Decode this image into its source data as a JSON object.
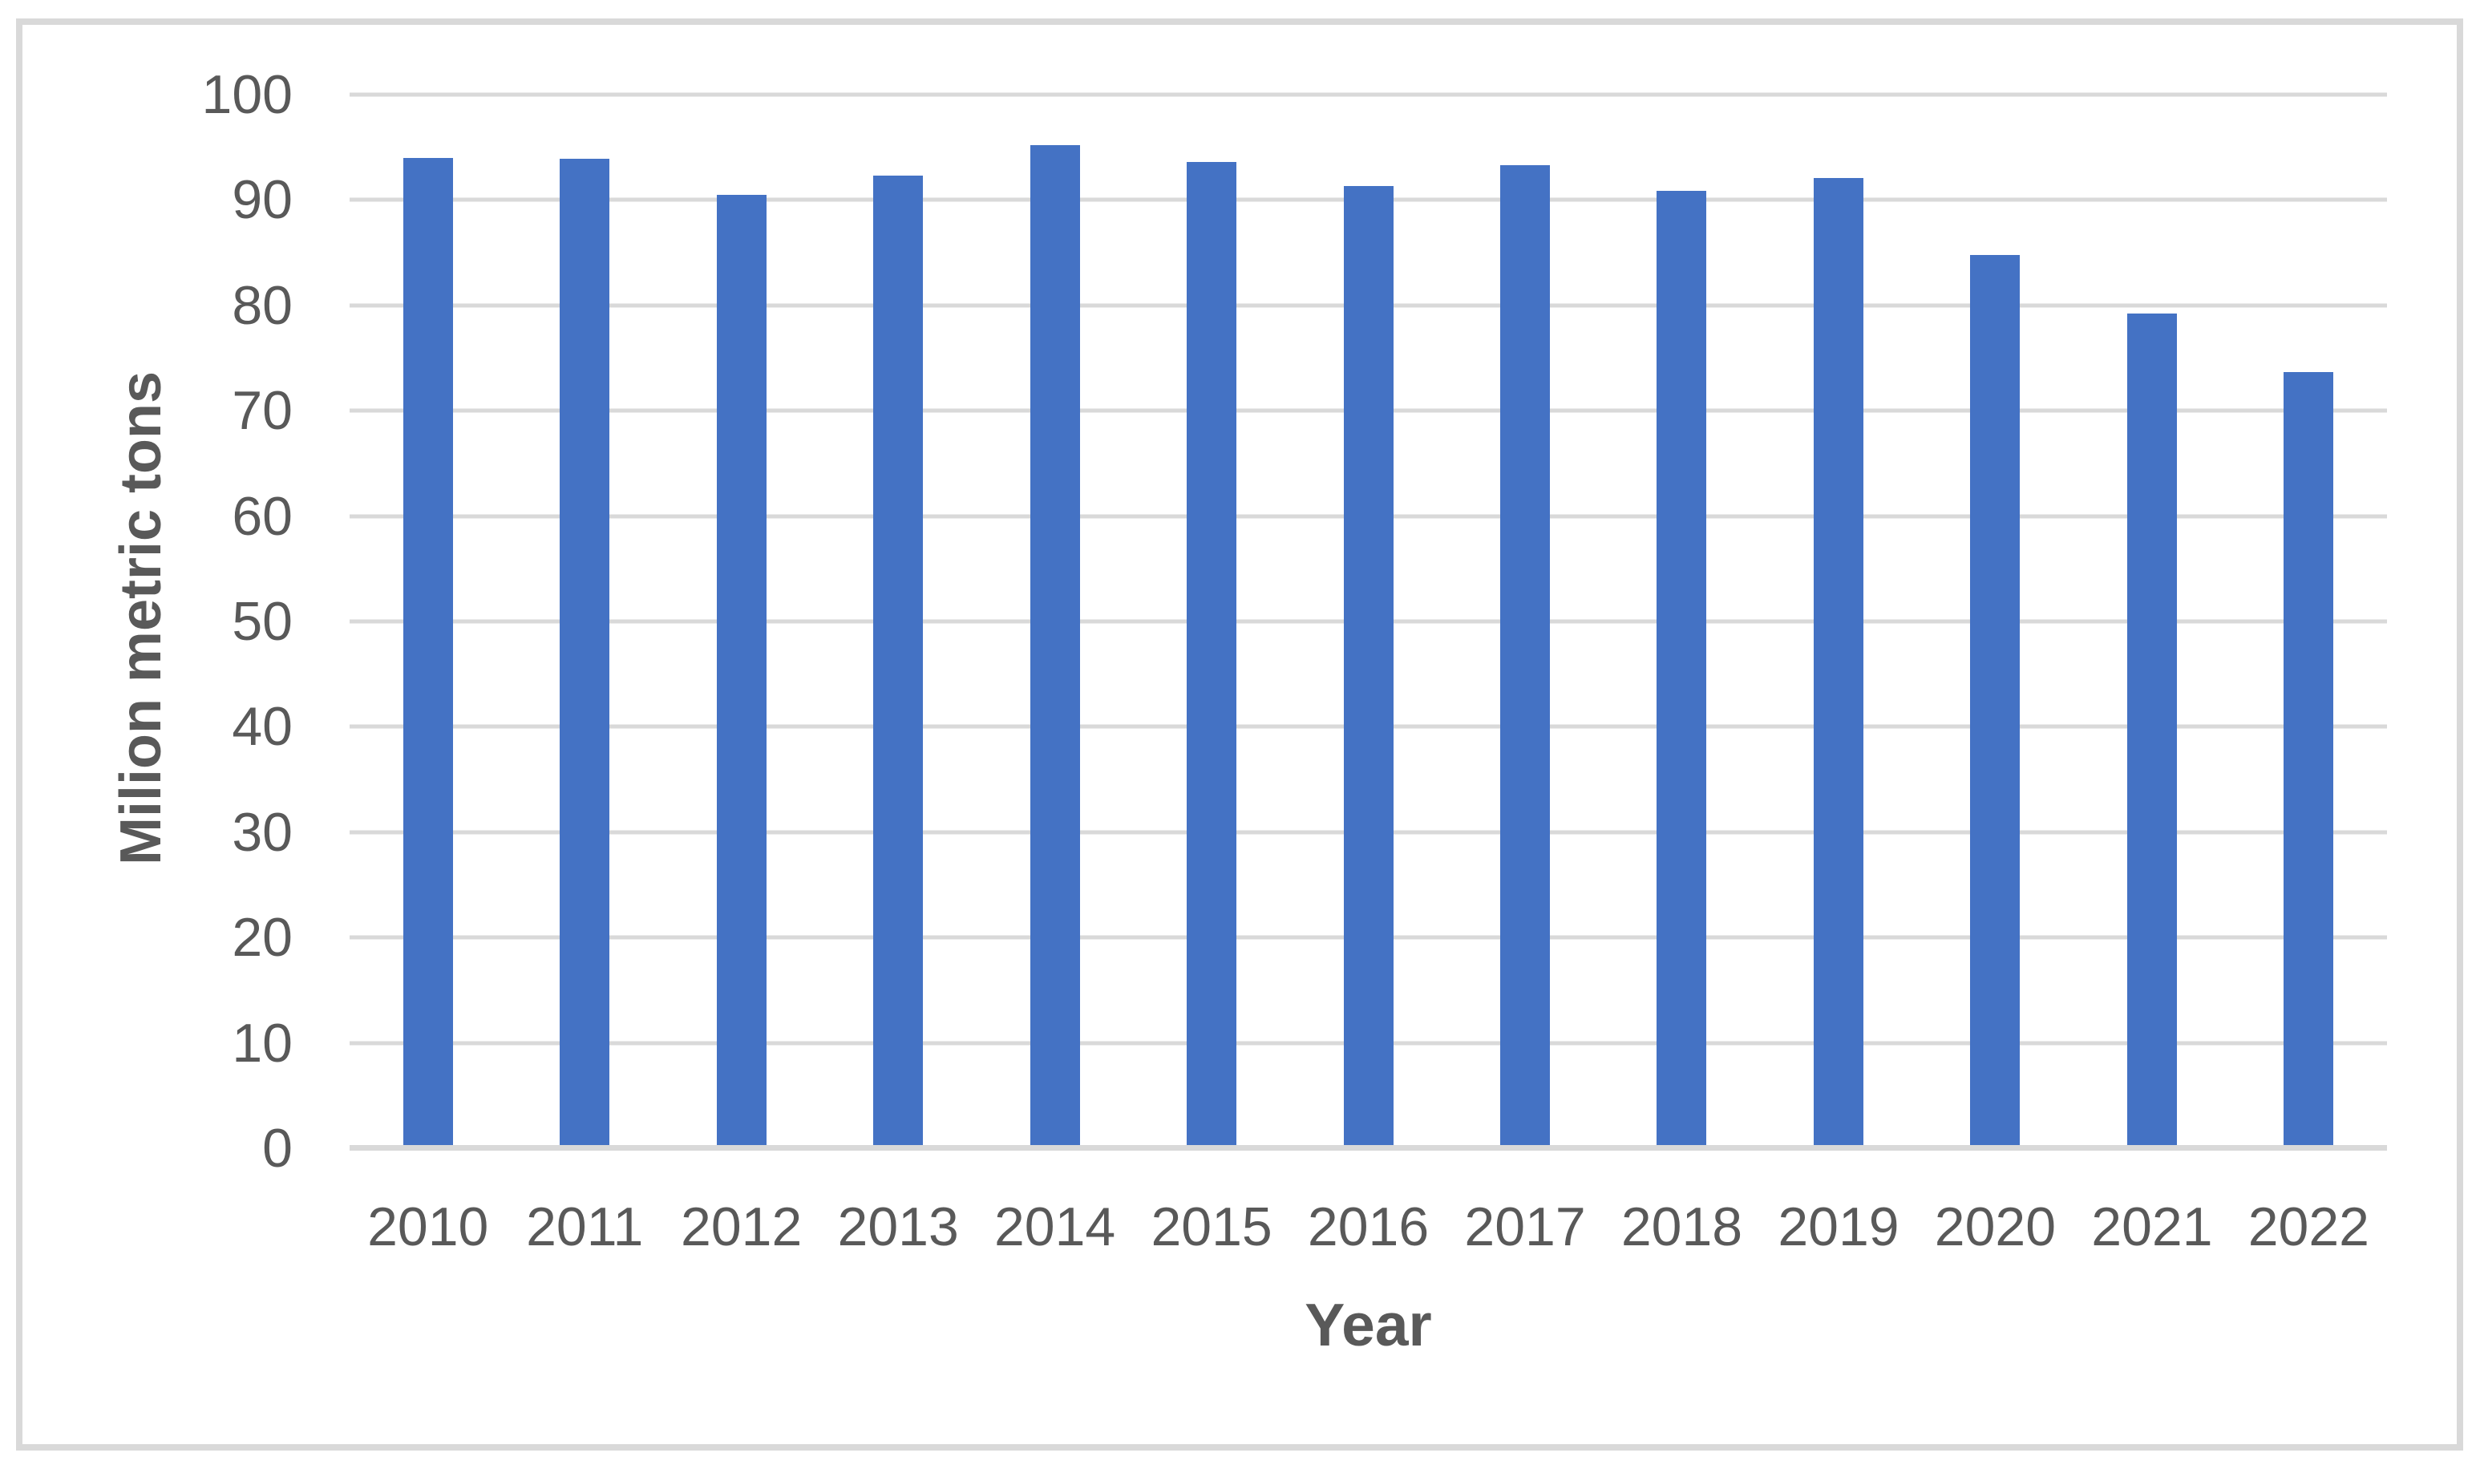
{
  "chart_data": {
    "type": "bar",
    "title": "",
    "xlabel": "Year",
    "ylabel": "Milion metric tons",
    "categories": [
      "2010",
      "2011",
      "2012",
      "2013",
      "2014",
      "2015",
      "2016",
      "2017",
      "2018",
      "2019",
      "2020",
      "2021",
      "2022"
    ],
    "values": [
      94.0,
      93.9,
      90.5,
      92.3,
      95.2,
      93.6,
      91.3,
      93.3,
      90.9,
      92.1,
      84.8,
      79.2,
      73.7
    ],
    "series": [
      {
        "name": "Milion metric tons",
        "values": [
          94.0,
          93.9,
          90.5,
          92.3,
          95.2,
          93.6,
          91.3,
          93.3,
          90.9,
          92.1,
          84.8,
          79.2,
          73.7
        ]
      }
    ],
    "ylim": [
      0,
      100
    ],
    "ytick_step": 10,
    "yticks": [
      "0",
      "10",
      "20",
      "30",
      "40",
      "50",
      "60",
      "70",
      "80",
      "90",
      "100"
    ],
    "grid": true,
    "legend": "none",
    "colors": {
      "bar": "#4472C4",
      "gridline": "#D9D9D9",
      "axis_line": "#D9D9D9",
      "text": "#595959",
      "frame_border": "#D9D9D9",
      "background": "#FFFFFF"
    }
  }
}
